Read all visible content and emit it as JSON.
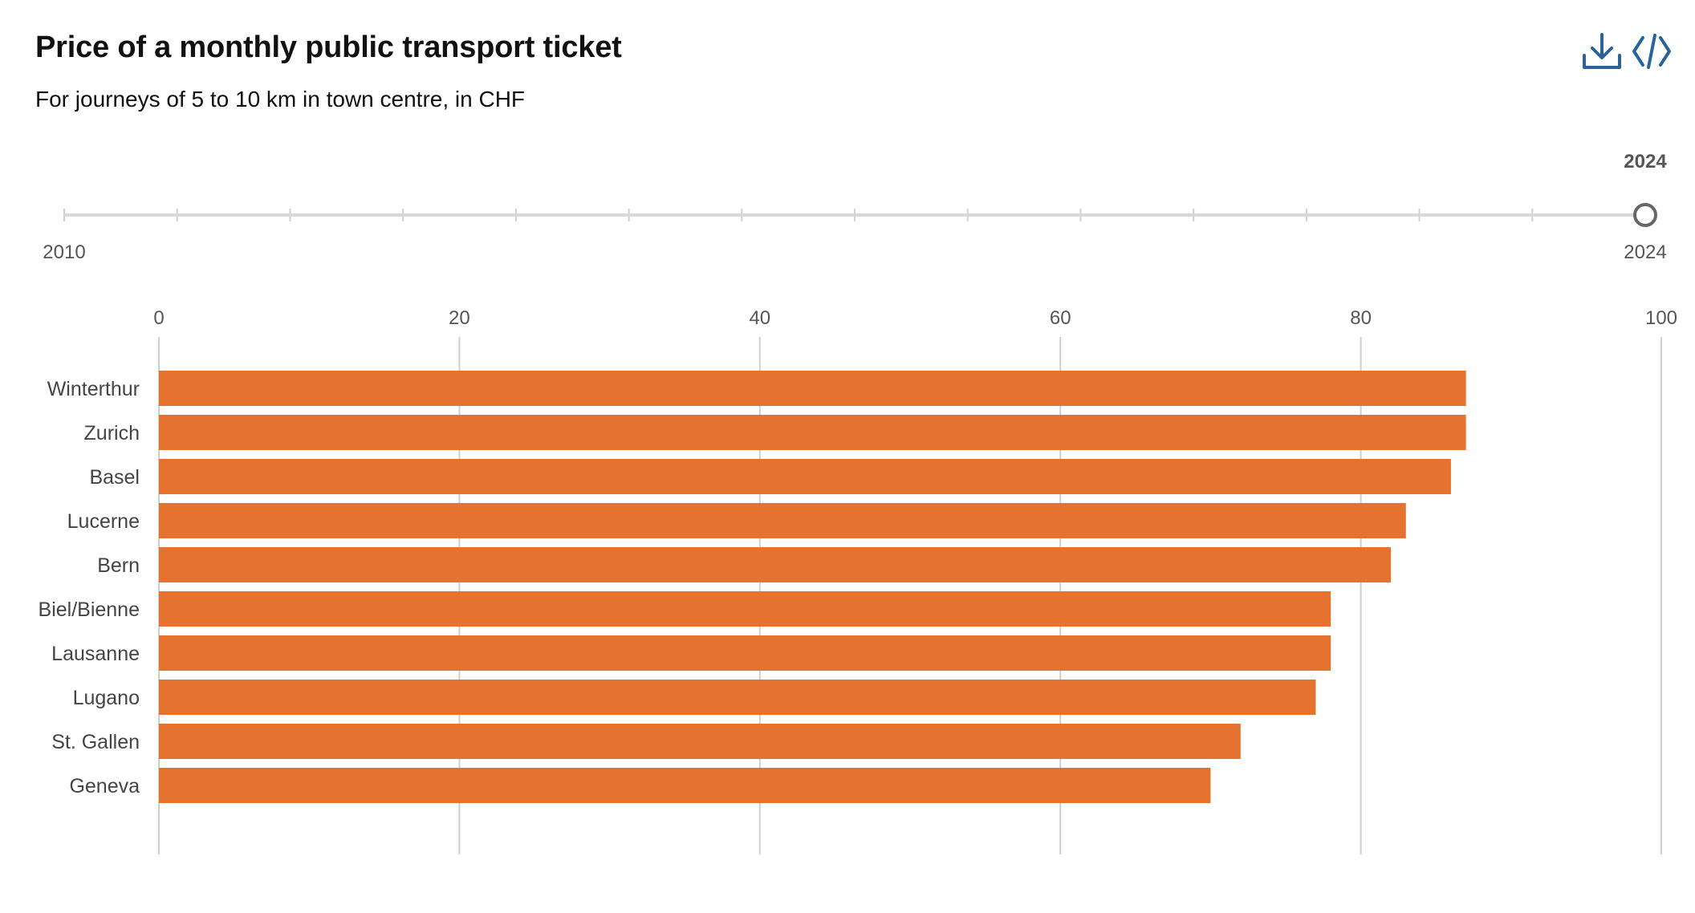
{
  "header": {
    "title": "Price of a monthly public transport ticket",
    "subtitle": "For journeys of 5 to 10 km in town centre, in CHF"
  },
  "toolbar": {
    "download_icon": "download-icon",
    "embed_icon": "code-embed-icon"
  },
  "timeline": {
    "start_label": "2010",
    "end_label": "2024",
    "selected_label": "2024",
    "start_year": 2010,
    "end_year": 2024,
    "selected_year": 2024
  },
  "colors": {
    "bar": "#E5732F",
    "grid": "#cfcfcf",
    "accent": "#2A6397",
    "axis_text": "#555555"
  },
  "chart_data": {
    "type": "bar",
    "orientation": "horizontal",
    "categories": [
      "Winterthur",
      "Zurich",
      "Basel",
      "Lucerne",
      "Bern",
      "Biel/Bienne",
      "Lausanne",
      "Lugano",
      "St. Gallen",
      "Geneva"
    ],
    "values": [
      87,
      87,
      86,
      83,
      82,
      78,
      78,
      77,
      72,
      70
    ],
    "xlim": [
      0,
      100
    ],
    "xticks": [
      0,
      20,
      40,
      60,
      80,
      100
    ],
    "grid": true,
    "title": "Price of a monthly public transport ticket",
    "subtitle": "For journeys of 5 to 10 km in town centre, in CHF"
  }
}
